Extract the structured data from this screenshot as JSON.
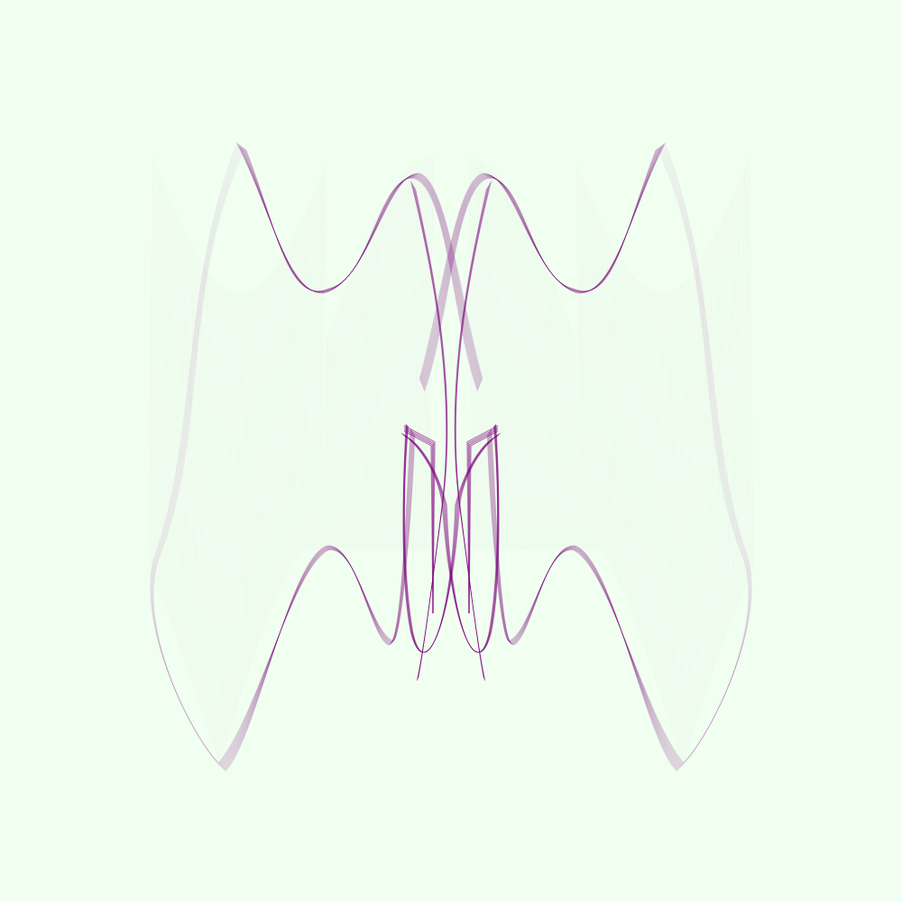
{
  "artwork": {
    "background_color": "#f0fff0",
    "stroke_color": "#800080",
    "style": "generative line-ribbon artwork, bilaterally symmetric"
  }
}
